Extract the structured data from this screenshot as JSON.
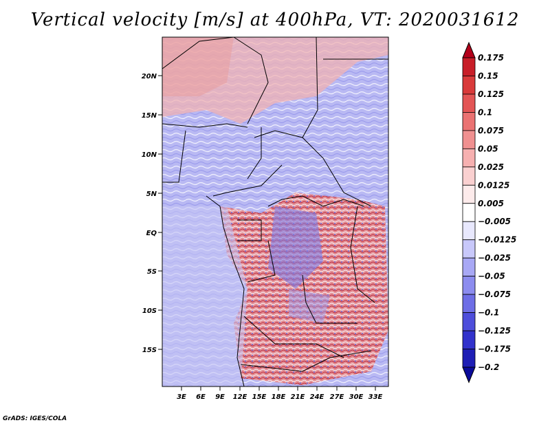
{
  "title": "Vertical velocity [m/s] at 400hPa, VT: 2020031612",
  "credit": "GrADS: IGES/COLA",
  "map": {
    "lat_labels": [
      "20N",
      "15N",
      "10N",
      "5N",
      "EQ",
      "5S",
      "10S",
      "15S"
    ],
    "lon_labels": [
      "3E",
      "6E",
      "9E",
      "12E",
      "15E",
      "18E",
      "21E",
      "24E",
      "27E",
      "30E",
      "33E"
    ]
  },
  "colorbar": {
    "labels": [
      "0.175",
      "0.15",
      "0.125",
      "0.1",
      "0.075",
      "0.05",
      "0.025",
      "0.0125",
      "0.005",
      "-0.005",
      "-0.0125",
      "-0.025",
      "-0.05",
      "-0.075",
      "-0.1",
      "-0.125",
      "-0.175",
      "-0.2"
    ],
    "colors": [
      "#b3001a",
      "#c81e28",
      "#d93a3a",
      "#e35555",
      "#ea7272",
      "#f09090",
      "#f6b0b0",
      "#fad0d0",
      "#fdebeb",
      "#ffffff",
      "#e8e8fd",
      "#c8c8fa",
      "#a8a8f5",
      "#8c8cef",
      "#6e6ee6",
      "#4e4edb",
      "#3232cc",
      "#1e1eb5",
      "#0a0a9a"
    ]
  }
}
